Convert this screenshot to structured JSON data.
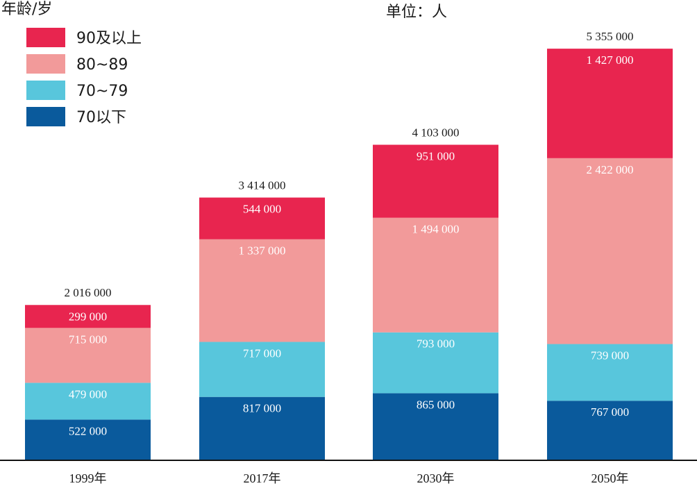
{
  "header": {
    "legend_title": "年龄/岁",
    "unit": "单位：人"
  },
  "chart_data": {
    "type": "bar",
    "stacked": true,
    "title": "",
    "xlabel": "",
    "ylabel": "",
    "categories": [
      "1999年",
      "2017年",
      "2030年",
      "2050年"
    ],
    "series": [
      {
        "name": "70以下",
        "color": "#0a5a9c",
        "values": [
          522000,
          817000,
          865000,
          767000
        ],
        "labels": [
          "522 000",
          "817 000",
          "865 000",
          "767 000"
        ]
      },
      {
        "name": "70~79",
        "color": "#58c6dc",
        "values": [
          479000,
          717000,
          793000,
          739000
        ],
        "labels": [
          "479 000",
          "717 000",
          "793 000",
          "739 000"
        ]
      },
      {
        "name": "80~89",
        "color": "#f29a9a",
        "values": [
          715000,
          1337000,
          1494000,
          2422000
        ],
        "labels": [
          "715 000",
          "1 337 000",
          "1 494 000",
          "2 422 000"
        ]
      },
      {
        "name": "90及以上",
        "color": "#e8254f",
        "values": [
          299000,
          544000,
          951000,
          1427000
        ],
        "labels": [
          "299 000",
          "544 000",
          "951 000",
          "1 427 000"
        ]
      }
    ],
    "totals": [
      2016000,
      3414000,
      4103000,
      5355000
    ],
    "total_labels": [
      "2 016 000",
      "3 414 000",
      "4 103 000",
      "5 355 000"
    ],
    "legend_position": "top-left",
    "legend_order": [
      "90及以上",
      "80~89",
      "70~79",
      "70以下"
    ],
    "grid": false
  }
}
